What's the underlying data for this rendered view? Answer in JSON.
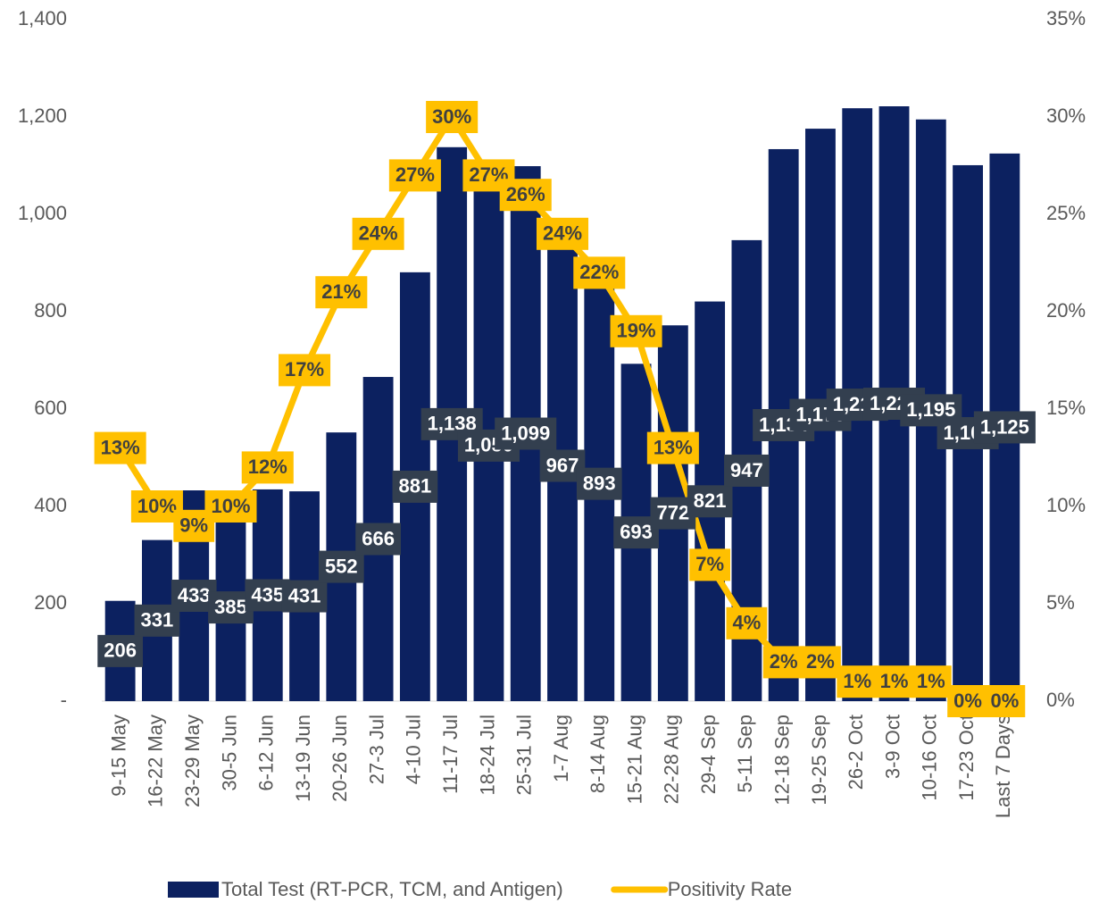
{
  "chart_data": {
    "type": "bar",
    "categories": [
      "9-15 May",
      "16-22 May",
      "23-29 May",
      "30-5 Jun",
      "6-12 Jun",
      "13-19 Jun",
      "20-26 Jun",
      "27-3 Jul",
      "4-10 Jul",
      "11-17 Jul",
      "18-24 Jul",
      "25-31 Jul",
      "1-7 Aug",
      "8-14 Aug",
      "15-21 Aug",
      "22-28 Aug",
      "29-4 Sep",
      "5-11 Sep",
      "12-18 Sep",
      "19-25 Sep",
      "26-2 Oct",
      "3-9 Oct",
      "10-16 Oct",
      "17-23 Oct",
      "Last 7 Days"
    ],
    "series": [
      {
        "name": "Total Test (RT-PCR, TCM, and Antigen)",
        "color": "#0c2160",
        "type": "bar",
        "values": [
          206,
          331,
          433,
          385,
          435,
          431,
          552,
          666,
          881,
          1138,
          1050,
          1099,
          967,
          893,
          693,
          772,
          821,
          947,
          1134,
          1176,
          1218,
          1222,
          1195,
          1101,
          1125
        ],
        "value_labels": [
          "206",
          "331",
          "433",
          "385",
          "435",
          "431",
          "552",
          "666",
          "881",
          "1,138",
          "1,050",
          "1,099",
          "967",
          "893",
          "693",
          "772",
          "821",
          "947",
          "1,134",
          "1,176",
          "1,218",
          "1,222",
          "1,195",
          "1,101",
          "1,125"
        ]
      },
      {
        "name": "Positivity Rate",
        "color": "#ffc000",
        "type": "line",
        "axis": "y2",
        "values": [
          13,
          10,
          9,
          10,
          12,
          17,
          21,
          24,
          27,
          30,
          27,
          26,
          24,
          22,
          19,
          13,
          7,
          4,
          2,
          2,
          1,
          1,
          1,
          0,
          0
        ],
        "value_labels": [
          "13%",
          "10%",
          "9%",
          "10%",
          "12%",
          "17%",
          "21%",
          "24%",
          "27%",
          "30%",
          "27%",
          "26%",
          "24%",
          "22%",
          "19%",
          "13%",
          "7%",
          "4%",
          "2%",
          "2%",
          "1%",
          "1%",
          "1%",
          "0%",
          "0%"
        ]
      }
    ],
    "ylim": [
      0,
      1400
    ],
    "yticks": [
      {
        "value": 0,
        "label": "-"
      },
      200,
      400,
      600,
      800,
      {
        "value": 1000,
        "label": "1,000"
      },
      {
        "value": 1200,
        "label": "1,200"
      },
      {
        "value": 1400,
        "label": "1,400"
      }
    ],
    "y2lim": [
      0,
      35
    ],
    "y2ticks": [
      {
        "value": 0,
        "label": "0%"
      },
      {
        "value": 5,
        "label": "5%"
      },
      {
        "value": 10,
        "label": "10%"
      },
      {
        "value": 15,
        "label": "15%"
      },
      {
        "value": 20,
        "label": "20%"
      },
      {
        "value": 25,
        "label": "25%"
      },
      {
        "value": 30,
        "label": "30%"
      },
      {
        "value": 35,
        "label": "35%"
      }
    ],
    "grid": false,
    "legend": "bottom"
  }
}
